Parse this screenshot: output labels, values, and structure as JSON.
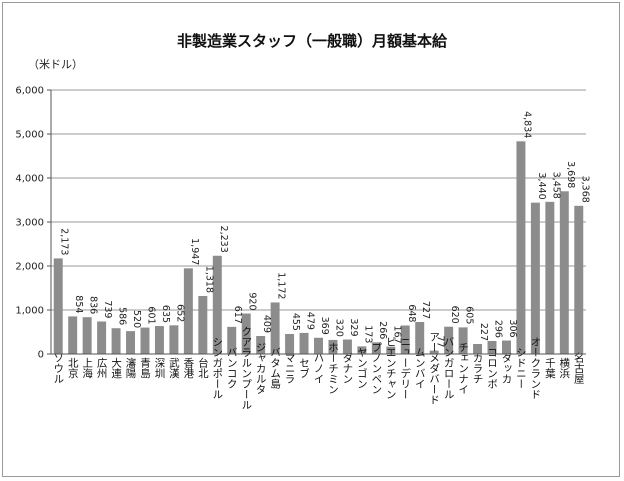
{
  "chart_data": {
    "type": "bar",
    "title": "非製造業スタッフ（一般職）月額基本給",
    "ylabel": "（米ドル）",
    "ylim": [
      0,
      6000
    ],
    "yticks": [
      "0",
      "1,000",
      "2,000",
      "3,000",
      "4,000",
      "5,000",
      "6,000"
    ],
    "ytick_values": [
      0,
      1000,
      2000,
      3000,
      4000,
      5000,
      6000
    ],
    "bar_color": "#8c8c8c",
    "categories": [
      "ソウル",
      "北京",
      "上海",
      "広州",
      "大連",
      "瀋陽",
      "青島",
      "深圳",
      "武漢",
      "香港",
      "台北",
      "シンガポール",
      "バンコク",
      "クアラルンプール",
      "ジャカルタ",
      "バタム島",
      "マニラ",
      "セブ",
      "ハノイ",
      "ホーチミン",
      "ダナン",
      "ヤンゴン",
      "プノンペン",
      "ビエンチャン",
      "ニューデリー",
      "ムンバイ",
      "アーメダバード",
      "バンガロール",
      "チェンナイ",
      "カラチ",
      "コロンボ",
      "ダッカ",
      "シドニー",
      "オークランド",
      "千葉",
      "横浜",
      "名古屋"
    ],
    "values": [
      2173,
      854,
      836,
      739,
      586,
      520,
      601,
      635,
      652,
      1947,
      1318,
      2233,
      617,
      920,
      409,
      1172,
      455,
      479,
      369,
      320,
      329,
      173,
      266,
      167,
      648,
      727,
      77,
      620,
      605,
      227,
      296,
      306,
      4834,
      3440,
      3458,
      3698,
      3368
    ],
    "value_labels": [
      "2,173",
      "854",
      "836",
      "739",
      "586",
      "520",
      "601",
      "635",
      "652",
      "1,947",
      "1,318",
      "2,233",
      "617",
      "920",
      "409",
      "1,172",
      "455",
      "479",
      "369",
      "320",
      "329",
      "173",
      "266",
      "167",
      "648",
      "727",
      "77",
      "620",
      "605",
      "227",
      "296",
      "306",
      "4,834",
      "3,440",
      "3,458",
      "3,698",
      "3,368"
    ]
  }
}
